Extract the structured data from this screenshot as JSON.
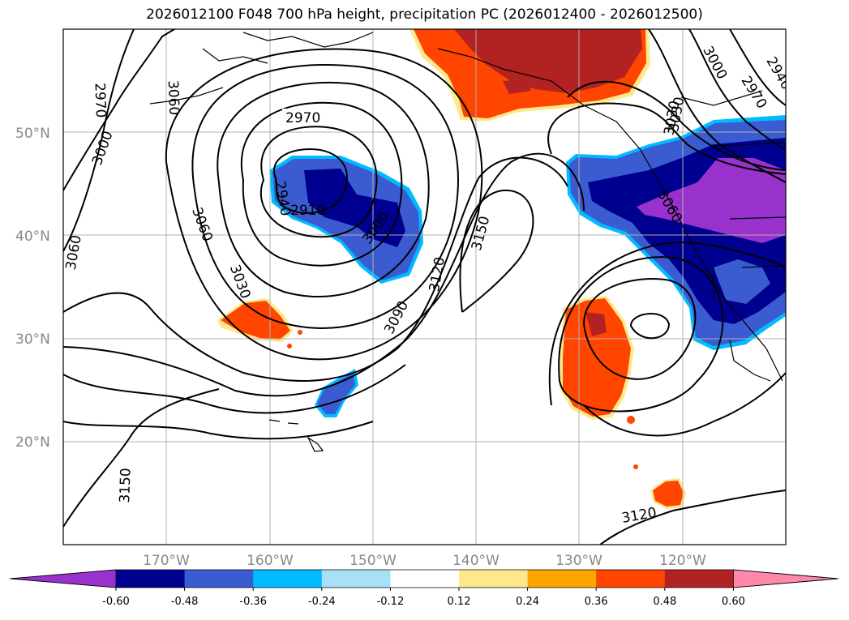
{
  "title": "2026012100 F048 700 hPa height, precipitation PC (2026012400 - 2026012500)",
  "lat_labels": [
    "50°N",
    "40°N",
    "30°N",
    "20°N"
  ],
  "lon_labels": [
    "170°W",
    "160°W",
    "150°W",
    "140°W",
    "130°W",
    "120°W"
  ],
  "contour_labels": [
    "2970",
    "3060",
    "3000",
    "3060",
    "2970",
    "2940",
    "2910",
    "3000",
    "3060",
    "3030",
    "3030",
    "3090",
    "3120",
    "3150",
    "3030",
    "3060",
    "3000",
    "2970",
    "2940",
    "3150",
    "3120"
  ],
  "colorbar": {
    "ticks": [
      "-0.60",
      "-0.48",
      "-0.36",
      "-0.24",
      "-0.12",
      "0.12",
      "0.24",
      "0.36",
      "0.48",
      "0.60"
    ],
    "colors": [
      "#9932cc",
      "#000090",
      "#3b5cd0",
      "#00bbff",
      "#a8e0f8",
      "#ffffff",
      "#fde98c",
      "#ffa500",
      "#ff4500",
      "#b22222",
      "#ff88aa"
    ]
  }
}
